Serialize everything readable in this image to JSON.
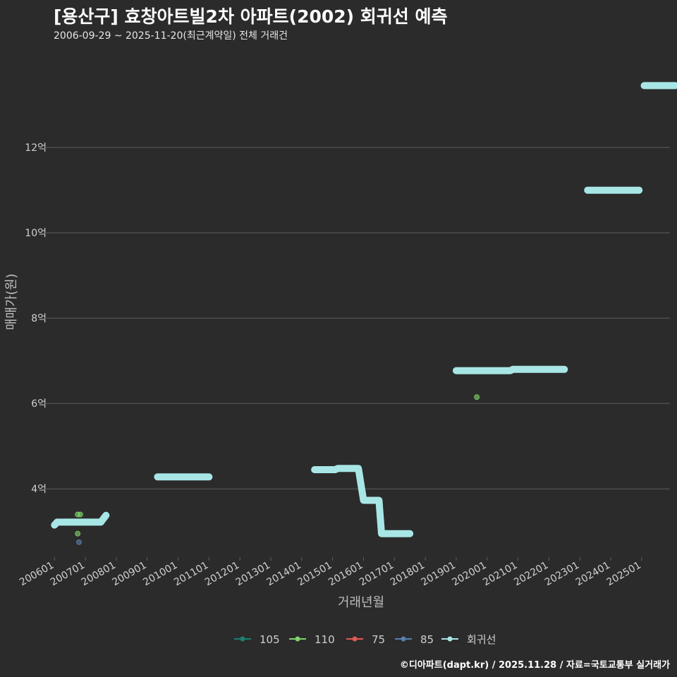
{
  "title": "[용산구] 효창아트빌2차 아파트(2002) 회귀선 예측",
  "subtitle": "2006-09-29 ~ 2025-11-20(최근계약일) 전체 거래건",
  "caption": "©디아파트(dapt.kr) / 2025.11.28 / 자료=국토교통부 실거래가",
  "colors": {
    "background": "#2b2b2b",
    "grid": "#5e5e5e",
    "text": "#cfcfcf",
    "series_105": "#1f7f6f",
    "series_110": "#7fd36a",
    "series_75": "#e05a5a",
    "series_85": "#5a7fb0",
    "regression": "#a8e6e6"
  },
  "chart_data": {
    "type": "scatter",
    "xlabel": "거래년월",
    "ylabel": "매매가(원)",
    "x_unit": "months since 2006-01",
    "xlim": [
      -2,
      239
    ],
    "ylim": [
      2.4,
      14.3
    ],
    "x_ticks": [
      {
        "label": "200601",
        "x": 0
      },
      {
        "label": "200701",
        "x": 12
      },
      {
        "label": "200801",
        "x": 24
      },
      {
        "label": "200901",
        "x": 36
      },
      {
        "label": "201001",
        "x": 48
      },
      {
        "label": "201101",
        "x": 60
      },
      {
        "label": "201201",
        "x": 72
      },
      {
        "label": "201301",
        "x": 84
      },
      {
        "label": "201401",
        "x": 96
      },
      {
        "label": "201501",
        "x": 108
      },
      {
        "label": "201601",
        "x": 120
      },
      {
        "label": "201701",
        "x": 132
      },
      {
        "label": "201801",
        "x": 144
      },
      {
        "label": "201901",
        "x": 156
      },
      {
        "label": "202001",
        "x": 168
      },
      {
        "label": "202101",
        "x": 180
      },
      {
        "label": "202201",
        "x": 192
      },
      {
        "label": "202301",
        "x": 204
      },
      {
        "label": "202401",
        "x": 216
      },
      {
        "label": "202501",
        "x": 228
      }
    ],
    "y_ticks": [
      {
        "label": "4억",
        "y": 4
      },
      {
        "label": "6억",
        "y": 6
      },
      {
        "label": "8억",
        "y": 8
      },
      {
        "label": "10억",
        "y": 10
      },
      {
        "label": "12억",
        "y": 12
      }
    ],
    "legend": {
      "position": "bottom",
      "items": [
        "105",
        "110",
        "75",
        "85",
        "회귀선"
      ]
    },
    "series": [
      {
        "name": "105",
        "color": "#1f7f6f",
        "points": []
      },
      {
        "name": "110",
        "color": "#7fd36a",
        "points": [
          {
            "x": 9,
            "y": 3.4
          },
          {
            "x": 10,
            "y": 3.4
          },
          {
            "x": 9,
            "y": 2.95
          },
          {
            "x": 164,
            "y": 6.15
          }
        ]
      },
      {
        "name": "75",
        "color": "#e05a5a",
        "points": []
      },
      {
        "name": "85",
        "color": "#5a7fb0",
        "points": [
          {
            "x": 9.5,
            "y": 2.75
          }
        ]
      }
    ],
    "regression": {
      "name": "회귀선",
      "color": "#a8e6e6",
      "segments": [
        [
          [
            0,
            3.15
          ],
          [
            1,
            3.22
          ],
          [
            18,
            3.22
          ],
          [
            20,
            3.38
          ]
        ],
        [
          [
            40,
            4.28
          ],
          [
            60,
            4.28
          ]
        ],
        [
          [
            101,
            4.45
          ],
          [
            109,
            4.45
          ],
          [
            110,
            4.48
          ],
          [
            118,
            4.48
          ],
          [
            120,
            3.73
          ],
          [
            126,
            3.73
          ],
          [
            127,
            2.95
          ],
          [
            138,
            2.95
          ]
        ],
        [
          [
            156,
            6.77
          ],
          [
            177,
            6.77
          ],
          [
            178,
            6.8
          ],
          [
            198,
            6.8
          ]
        ],
        [
          [
            207,
            11.0
          ],
          [
            227,
            11.0
          ]
        ],
        [
          [
            229,
            13.45
          ],
          [
            241,
            13.45
          ]
        ]
      ]
    }
  }
}
